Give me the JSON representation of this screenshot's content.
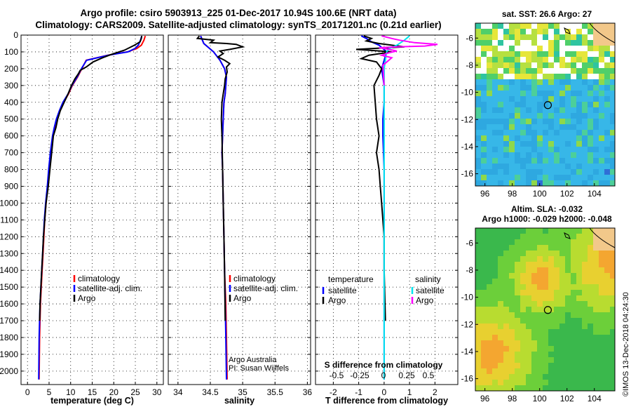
{
  "header": {
    "title_line1": "Argo profile: csiro 5903913_225 01-Dec-2017 10.94S 100.6E (NRT data)",
    "title_line2": "Climatology: CARS2009. Satellite-adjusted climatology: synTS_20171201.nc (0.21d earlier)"
  },
  "colors": {
    "climatology": "#ff0000",
    "satellite": "#0000ff",
    "argo": "#000000",
    "sal_satellite": "#00e5ee",
    "sal_argo": "#ff00ff"
  },
  "chart_data": [
    {
      "type": "line",
      "panel": "temperature",
      "xlabel": "temperature (deg C)",
      "ylabel": "",
      "xlim": [
        -1.5,
        31.5
      ],
      "ylim": [
        2080,
        0
      ],
      "yticks": [
        0,
        100,
        200,
        300,
        400,
        500,
        600,
        700,
        800,
        900,
        1000,
        1100,
        1200,
        1300,
        1400,
        1500,
        1600,
        1700,
        1800,
        1900,
        2000
      ],
      "xticks": [
        0,
        5,
        10,
        15,
        20,
        25,
        30
      ],
      "legend": [
        "climatology",
        "satellite-adj. clim.",
        "Argo"
      ],
      "series": [
        {
          "name": "climatology",
          "color": "#ff0000",
          "x": [
            27.3,
            27.0,
            26.4,
            25.3,
            23.2,
            18.6,
            13.6,
            12.6,
            11.6,
            10.4,
            9.5,
            8.4,
            7.5,
            6.8,
            6.3,
            5.9,
            5.4,
            5.0,
            4.7,
            4.3,
            4.0,
            3.8,
            3.6,
            3.4,
            3.2,
            3.0,
            2.8,
            2.7
          ],
          "y": [
            5,
            30,
            60,
            80,
            100,
            120,
            150,
            200,
            250,
            300,
            350,
            400,
            450,
            500,
            550,
            600,
            700,
            800,
            900,
            1000,
            1100,
            1200,
            1300,
            1400,
            1500,
            1600,
            1800,
            2050
          ]
        },
        {
          "name": "satellite-adj. clim.",
          "color": "#0000ff",
          "x": [
            26.5,
            26.2,
            25.7,
            24.9,
            23.3,
            18.7,
            13.7,
            12.5,
            11.5,
            10.3,
            9.4,
            8.2,
            7.4,
            6.7,
            6.2,
            5.8,
            5.3,
            4.9,
            4.6,
            4.2,
            3.9,
            3.7,
            3.5,
            3.3,
            3.1,
            2.9,
            2.7,
            2.6
          ],
          "y": [
            5,
            30,
            60,
            80,
            100,
            120,
            150,
            200,
            250,
            300,
            350,
            400,
            450,
            500,
            550,
            600,
            700,
            800,
            900,
            1000,
            1100,
            1200,
            1300,
            1400,
            1500,
            1600,
            1800,
            2050
          ]
        },
        {
          "name": "Argo",
          "color": "#000000",
          "x": [
            26.5,
            26.4,
            26.1,
            24.8,
            22.5,
            19.5,
            17.4,
            15.2,
            13.6,
            12.2,
            11.8,
            11.0,
            10.2,
            9.4,
            8.5,
            7.6,
            7.0,
            6.6,
            6.0,
            5.6,
            5.2,
            4.8,
            4.3,
            4.0,
            3.7,
            3.5,
            3.3,
            3.1,
            2.9,
            2.8
          ],
          "y": [
            5,
            20,
            40,
            60,
            90,
            115,
            135,
            160,
            190,
            210,
            230,
            260,
            300,
            350,
            400,
            450,
            500,
            550,
            600,
            700,
            800,
            900,
            1000,
            1100,
            1200,
            1300,
            1400,
            1500,
            1600,
            1700
          ]
        }
      ]
    },
    {
      "type": "line",
      "panel": "salinity",
      "xlabel": "salinity",
      "ylabel": "",
      "xlim": [
        33.85,
        36.05
      ],
      "ylim": [
        2080,
        0
      ],
      "xticks": [
        34,
        34.5,
        35,
        35.5,
        36
      ],
      "legend": [
        "climatology",
        "satellite-adj. clim.",
        "Argo"
      ],
      "annotations": [
        "Argo Australia",
        "PI: Susan Wijffels"
      ],
      "series": [
        {
          "name": "climatology",
          "color": "#ff0000",
          "x": [
            34.35,
            34.4,
            34.55,
            34.65,
            34.72,
            34.75,
            34.74,
            34.73,
            34.71,
            34.7,
            34.69,
            34.68,
            34.69,
            34.7,
            34.71,
            34.72,
            34.74,
            34.75,
            34.76
          ],
          "y": [
            5,
            50,
            100,
            150,
            200,
            250,
            300,
            350,
            400,
            500,
            600,
            700,
            800,
            1000,
            1200,
            1400,
            1600,
            1800,
            2050
          ]
        },
        {
          "name": "satellite-adj. clim.",
          "color": "#0000ff",
          "x": [
            34.35,
            34.4,
            34.55,
            34.65,
            34.72,
            34.75,
            34.74,
            34.73,
            34.71,
            34.7,
            34.69,
            34.68,
            34.69,
            34.7,
            34.71,
            34.72,
            34.73,
            34.74,
            34.75
          ],
          "y": [
            5,
            50,
            100,
            150,
            200,
            250,
            300,
            350,
            400,
            500,
            600,
            700,
            800,
            1000,
            1200,
            1400,
            1600,
            1800,
            2050
          ]
        },
        {
          "name": "Argo",
          "color": "#000000",
          "x": [
            34.33,
            34.3,
            34.55,
            34.5,
            34.75,
            34.9,
            35.0,
            34.8,
            34.65,
            34.7,
            34.62,
            34.72,
            34.8,
            34.75,
            34.76,
            34.73,
            34.72,
            34.7,
            34.68,
            34.67,
            34.68,
            34.69,
            34.7,
            34.71,
            34.72,
            34.73
          ],
          "y": [
            5,
            20,
            30,
            45,
            50,
            55,
            70,
            85,
            95,
            110,
            130,
            150,
            170,
            190,
            220,
            260,
            300,
            350,
            400,
            500,
            600,
            800,
            1000,
            1200,
            1400,
            1700
          ]
        }
      ]
    },
    {
      "type": "line",
      "panel": "difference",
      "xlabel": "T difference from climatology",
      "ylabel": "",
      "xlim": [
        -2.7,
        2.9
      ],
      "ylim": [
        2080,
        0
      ],
      "xticks": [
        -2,
        -1,
        0,
        1,
        2
      ],
      "secondary_label": "S difference from climatology",
      "secondary_ticks": [
        "-0.5",
        "-0.25",
        "0",
        "0.25",
        "0.5"
      ],
      "legend": {
        "temperature_heading": "temperature",
        "salinity_heading": "salinity",
        "temperature_items": [
          "satellite",
          "Argo"
        ],
        "salinity_items": [
          "satellite",
          "Argo"
        ]
      },
      "series": [
        {
          "name": "T satellite",
          "color": "#0000ff",
          "x": [
            -0.9,
            -0.7,
            -0.5,
            -0.2,
            0.1,
            0.0,
            -0.1,
            -0.05,
            0.0,
            0.0,
            -0.05,
            -0.05,
            0.0,
            0.0,
            0.0,
            0.0,
            0.0
          ],
          "y": [
            5,
            20,
            40,
            60,
            100,
            150,
            200,
            250,
            300,
            400,
            500,
            600,
            800,
            1000,
            1400,
            1800,
            2050
          ]
        },
        {
          "name": "T Argo",
          "color": "#000000",
          "x": [
            -0.8,
            -0.5,
            -0.7,
            -0.2,
            0.8,
            -1.1,
            0.3,
            -0.6,
            -0.9,
            -0.3,
            -0.1,
            -0.2,
            -0.4,
            -0.3,
            -0.2,
            -0.3,
            -0.2,
            -0.15,
            -0.1,
            0.0,
            0.0,
            0.05
          ],
          "y": [
            5,
            20,
            35,
            50,
            70,
            85,
            100,
            120,
            140,
            160,
            200,
            240,
            300,
            500,
            600,
            700,
            800,
            900,
            1000,
            1200,
            1400,
            1700
          ]
        },
        {
          "name": "S satellite",
          "color": "#00e5ee",
          "x": [
            1.0,
            0.8,
            0.5,
            0.2,
            0.1,
            0.05,
            0.0,
            0.0,
            0.0,
            0.0,
            0.0,
            0.0
          ],
          "y": [
            5,
            30,
            60,
            80,
            100,
            150,
            200,
            300,
            400,
            600,
            1000,
            2050
          ]
        },
        {
          "name": "S Argo",
          "color": "#ff00ff",
          "x": [
            -0.1,
            0.3,
            0.6,
            1.2,
            2.1,
            1.6,
            0.5,
            -0.2,
            0.2,
            0.5,
            0.2,
            -0.1,
            0.3,
            -0.05,
            0.0
          ],
          "y": [
            5,
            20,
            30,
            45,
            55,
            65,
            70,
            75,
            85,
            95,
            105,
            120,
            135,
            180,
            300
          ]
        }
      ]
    }
  ],
  "maps": [
    {
      "title": "sat. SST: 26.6  Argo: 27",
      "xticks": [
        96,
        98,
        100,
        102,
        104
      ],
      "yticks": [
        -6,
        -8,
        -10,
        -12,
        -14,
        -16
      ],
      "xlim": [
        95.3,
        105.5
      ],
      "ylim": [
        -16.9,
        -4.9
      ],
      "marker": {
        "lon": 100.6,
        "lat": -10.94
      }
    },
    {
      "title_line1": "Altim. SLA: -0.032",
      "title_line2": "Argo h1000: -0.029 h2000: -0.048",
      "xticks": [
        96,
        98,
        100,
        102,
        104
      ],
      "yticks": [
        -6,
        -8,
        -10,
        -12,
        -14,
        -16
      ],
      "xlim": [
        95.3,
        105.5
      ],
      "ylim": [
        -16.9,
        -4.9
      ],
      "marker": {
        "lon": 100.6,
        "lat": -10.94
      }
    }
  ],
  "footer": {
    "credit": "©IMOS 13-Dec-2018 04:24:30"
  }
}
